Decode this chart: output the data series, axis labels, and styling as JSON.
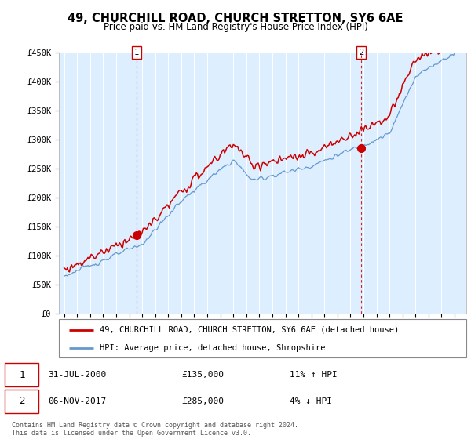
{
  "title": "49, CHURCHILL ROAD, CHURCH STRETTON, SY6 6AE",
  "subtitle": "Price paid vs. HM Land Registry's House Price Index (HPI)",
  "legend_line1": "49, CHURCHILL ROAD, CHURCH STRETTON, SY6 6AE (detached house)",
  "legend_line2": "HPI: Average price, detached house, Shropshire",
  "sale1_date": "31-JUL-2000",
  "sale1_price": 135000,
  "sale1_label": "11% ↑ HPI",
  "sale2_date": "06-NOV-2017",
  "sale2_price": 285000,
  "sale2_label": "4% ↓ HPI",
  "footnote": "Contains HM Land Registry data © Crown copyright and database right 2024.\nThis data is licensed under the Open Government Licence v3.0.",
  "hpi_color": "#6699cc",
  "price_color": "#cc0000",
  "sale_marker_color": "#cc0000",
  "vline_color": "#cc0000",
  "plot_bg_color": "#ddeeff",
  "background_color": "#ffffff",
  "grid_color": "#ffffff",
  "ylim": [
    0,
    450000
  ],
  "yticks": [
    0,
    50000,
    100000,
    150000,
    200000,
    250000,
    300000,
    350000,
    400000,
    450000
  ],
  "ylabels": [
    "£0",
    "£50K",
    "£100K",
    "£150K",
    "£200K",
    "£250K",
    "£300K",
    "£350K",
    "£400K",
    "£450K"
  ],
  "sale1_year": 2000.583,
  "sale2_year": 2017.833
}
